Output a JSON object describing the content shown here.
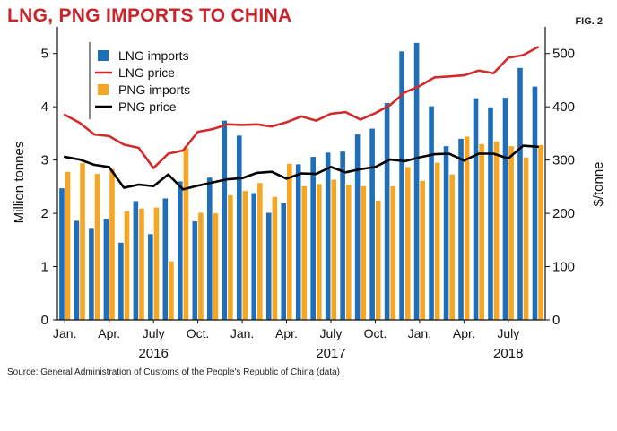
{
  "title": "LNG, PNG IMPORTS TO CHINA",
  "fig_label": "FIG. 2",
  "source": "Source: General Administration of Customs of the People's Republic of China (data)",
  "colors": {
    "lng_imports": "#1f6fb8",
    "png_imports": "#f5a623",
    "lng_price": "#d22b2b",
    "png_price": "#000000",
    "title": "#c8242b"
  },
  "chart_data": {
    "type": "bar+line",
    "title": "LNG, PNG IMPORTS TO CHINA",
    "ylabel_left": "Million tonnes",
    "ylabel_right": "$/tonne",
    "ylim_left": [
      0,
      5.5
    ],
    "ylim_right": [
      0,
      550
    ],
    "yticks_left": [
      "0",
      "1",
      "2",
      "3",
      "4",
      "5"
    ],
    "yticks_right": [
      "0",
      "100",
      "200",
      "300",
      "400",
      "500"
    ],
    "month_ticks": [
      {
        "label": "Jan.",
        "index": 0
      },
      {
        "label": "Apr.",
        "index": 3
      },
      {
        "label": "July",
        "index": 6
      },
      {
        "label": "Oct.",
        "index": 9
      },
      {
        "label": "Jan.",
        "index": 12
      },
      {
        "label": "Apr.",
        "index": 15
      },
      {
        "label": "July",
        "index": 18
      },
      {
        "label": "Oct.",
        "index": 21
      },
      {
        "label": "Jan.",
        "index": 24
      },
      {
        "label": "Apr.",
        "index": 27
      },
      {
        "label": "July",
        "index": 30
      }
    ],
    "year_labels": [
      {
        "label": "2016",
        "index": 6
      },
      {
        "label": "2017",
        "index": 18
      },
      {
        "label": "2018",
        "index": 30
      }
    ],
    "legend": [
      "LNG imports",
      "LNG price",
      "PNG imports",
      "PNG price"
    ],
    "series": [
      {
        "name": "LNG imports",
        "kind": "bar",
        "axis": "left",
        "values": [
          2.47,
          1.86,
          1.71,
          1.9,
          1.45,
          2.23,
          1.61,
          2.28,
          2.6,
          1.85,
          2.67,
          3.74,
          3.46,
          2.38,
          2.01,
          2.19,
          2.92,
          3.06,
          3.14,
          3.16,
          3.48,
          3.59,
          4.07,
          5.04,
          5.2,
          4.01,
          3.26,
          3.4,
          4.16,
          3.99,
          4.17,
          4.73,
          4.38
        ]
      },
      {
        "name": "PNG imports",
        "kind": "bar",
        "axis": "left",
        "values": [
          2.78,
          2.94,
          2.74,
          2.83,
          2.04,
          2.09,
          2.11,
          1.1,
          3.22,
          2.01,
          2.0,
          2.34,
          2.42,
          2.57,
          2.31,
          2.93,
          2.51,
          2.55,
          2.63,
          2.54,
          2.51,
          2.24,
          2.51,
          2.87,
          2.61,
          2.95,
          2.73,
          3.44,
          3.3,
          3.35,
          3.26,
          3.05,
          3.28
        ]
      },
      {
        "name": "LNG price",
        "kind": "line",
        "axis": "right",
        "values": [
          385,
          370,
          348,
          345,
          329,
          323,
          285,
          312,
          318,
          353,
          358,
          367,
          366,
          367,
          363,
          371,
          382,
          374,
          387,
          390,
          376,
          388,
          403,
          427,
          439,
          455,
          457,
          459,
          468,
          463,
          492,
          497,
          512
        ]
      },
      {
        "name": "PNG price",
        "kind": "line",
        "axis": "right",
        "values": [
          306,
          301,
          291,
          287,
          248,
          254,
          251,
          273,
          245,
          252,
          258,
          264,
          266,
          276,
          278,
          265,
          275,
          274,
          287,
          277,
          283,
          287,
          301,
          298,
          305,
          311,
          312,
          299,
          312,
          312,
          303,
          327,
          325
        ]
      }
    ]
  }
}
